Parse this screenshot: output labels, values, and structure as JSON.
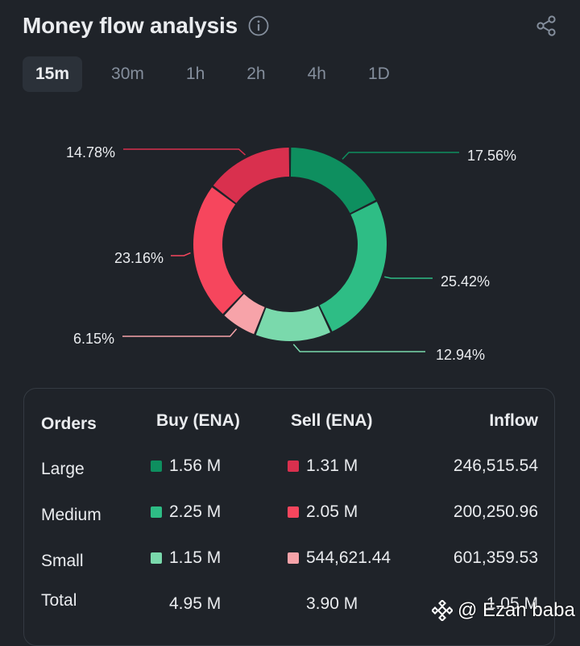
{
  "header": {
    "title": "Money flow analysis",
    "info_icon": "info-icon",
    "share_icon": "share-icon"
  },
  "tabs": [
    {
      "label": "15m",
      "active": true
    },
    {
      "label": "30m",
      "active": false
    },
    {
      "label": "1h",
      "active": false
    },
    {
      "label": "2h",
      "active": false
    },
    {
      "label": "4h",
      "active": false
    },
    {
      "label": "1D",
      "active": false
    }
  ],
  "donut": {
    "segments": [
      {
        "label": "17.56%",
        "value": 17.56,
        "color": "#0e8f5f"
      },
      {
        "label": "25.42%",
        "value": 25.42,
        "color": "#2ebd85"
      },
      {
        "label": "12.94%",
        "value": 12.94,
        "color": "#7ad9ac"
      },
      {
        "label": "6.15%",
        "value": 6.15,
        "color": "#f7a3a9"
      },
      {
        "label": "23.16%",
        "value": 23.16,
        "color": "#f6465d"
      },
      {
        "label": "14.78%",
        "value": 14.78,
        "color": "#d9304e"
      }
    ]
  },
  "table": {
    "headers": {
      "orders": "Orders",
      "buy": "Buy (ENA)",
      "sell": "Sell (ENA)",
      "inflow": "Inflow"
    },
    "rows": [
      {
        "label": "Large",
        "buy": "1.56 M",
        "sell": "1.31 M",
        "inflow": "246,515.54",
        "buy_color": "#0e8f5f",
        "sell_color": "#d9304e"
      },
      {
        "label": "Medium",
        "buy": "2.25 M",
        "sell": "2.05 M",
        "inflow": "200,250.96",
        "buy_color": "#2ebd85",
        "sell_color": "#f6465d"
      },
      {
        "label": "Small",
        "buy": "1.15 M",
        "sell": "544,621.44",
        "inflow": "601,359.53",
        "buy_color": "#7ad9ac",
        "sell_color": "#f7a3a9"
      }
    ],
    "total": {
      "label": "Total",
      "buy": "4.95 M",
      "sell": "3.90 M",
      "inflow": "1.05 M"
    }
  },
  "watermark": {
    "text": "@ Ezan baba"
  }
}
